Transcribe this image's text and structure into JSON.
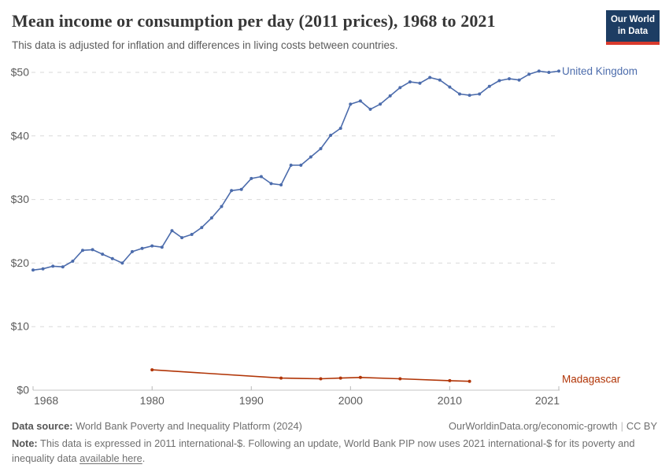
{
  "header": {
    "title": "Mean income or consumption per day (2011 prices), 1968 to 2021",
    "subtitle": "This data is adjusted for inflation and differences in living costs between countries.",
    "logo": {
      "line1": "Our World",
      "line2": "in Data",
      "bg_color": "#1d3d63",
      "accent_color": "#d93a2d"
    }
  },
  "chart_data": {
    "type": "line",
    "title": "Mean income or consumption per day (2011 prices), 1968 to 2021",
    "subtitle": "This data is adjusted for inflation and differences in living costs between countries.",
    "xlabel": "",
    "ylabel": "",
    "xlim": [
      1968,
      2021
    ],
    "ylim": [
      0,
      50
    ],
    "grid": "horizontal-dashed",
    "legend_position": "line-end-labels",
    "x_ticks": [
      1968,
      1980,
      1990,
      2000,
      2010,
      2021
    ],
    "x_tick_labels": [
      "1968",
      "1980",
      "1990",
      "2000",
      "2010",
      "2021"
    ],
    "y_ticks": [
      0,
      10,
      20,
      30,
      40,
      50
    ],
    "y_tick_labels": [
      "$0",
      "$10",
      "$20",
      "$30",
      "$40",
      "$50"
    ],
    "series": [
      {
        "name": "United Kingdom",
        "color": "#4c6cac",
        "x": [
          1968,
          1969,
          1970,
          1971,
          1972,
          1973,
          1974,
          1975,
          1976,
          1977,
          1978,
          1979,
          1980,
          1981,
          1982,
          1983,
          1984,
          1985,
          1986,
          1987,
          1988,
          1989,
          1990,
          1991,
          1992,
          1993,
          1994,
          1995,
          1996,
          1997,
          1998,
          1999,
          2000,
          2001,
          2002,
          2003,
          2004,
          2005,
          2006,
          2007,
          2008,
          2009,
          2010,
          2011,
          2012,
          2013,
          2014,
          2015,
          2016,
          2017,
          2018,
          2019,
          2020,
          2021
        ],
        "values": [
          18.9,
          19.1,
          19.5,
          19.4,
          20.3,
          22.0,
          22.1,
          21.4,
          20.7,
          20.0,
          21.8,
          22.3,
          22.7,
          22.5,
          25.1,
          24.0,
          24.5,
          25.6,
          27.1,
          28.9,
          31.4,
          31.6,
          33.3,
          33.6,
          32.5,
          32.3,
          35.4,
          35.4,
          36.7,
          38.0,
          40.1,
          41.2,
          45.0,
          45.5,
          44.2,
          45.0,
          46.3,
          47.6,
          48.5,
          48.3,
          49.2,
          48.8,
          47.7,
          46.6,
          46.4,
          46.6,
          47.8,
          48.7,
          49.0,
          48.8,
          49.7,
          50.2,
          50.0,
          50.2
        ]
      },
      {
        "name": "Madagascar",
        "color": "#b13507",
        "x": [
          1980,
          1993,
          1997,
          1999,
          2001,
          2005,
          2010,
          2012
        ],
        "values": [
          3.2,
          1.9,
          1.8,
          1.9,
          2.0,
          1.8,
          1.5,
          1.4
        ]
      }
    ]
  },
  "footer": {
    "data_source_label": "Data source:",
    "data_source": " World Bank Poverty and Inequality Platform (2024)",
    "attribution": "OurWorldinData.org/economic-growth",
    "divider": "|",
    "license": "CC BY",
    "note_label": "Note:",
    "note_text": " This data is expressed in 2011 international-$. Following an update, World Bank PIP now uses 2021 international-$ for its poverty and inequality data ",
    "note_link": "available here",
    "note_suffix": "."
  }
}
